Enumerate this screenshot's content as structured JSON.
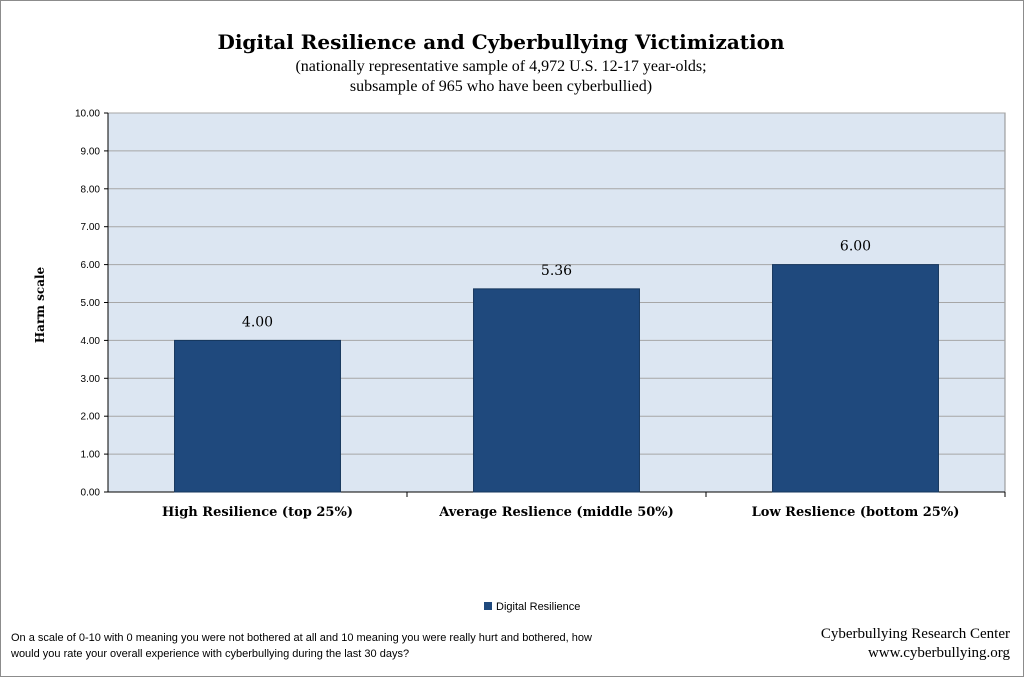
{
  "chart_data": {
    "type": "bar",
    "title": "Digital Resilience and Cyberbullying Victimization",
    "subtitle_lines": [
      "(nationally representative sample of 4,972 U.S. 12-17 year-olds;",
      "subsample of 965 who have been cyberbullied)"
    ],
    "ylabel": "Harm scale",
    "xlabel": "",
    "ylim": [
      0,
      10
    ],
    "yticks": [
      "0.00",
      "1.00",
      "2.00",
      "3.00",
      "4.00",
      "5.00",
      "6.00",
      "7.00",
      "8.00",
      "9.00",
      "10.00"
    ],
    "categories": [
      "High Resilience (top 25%)",
      "Average Reslience (middle 50%)",
      "Low Reslience (bottom 25%)"
    ],
    "series": [
      {
        "name": "Digital Resilience",
        "values": [
          4.0,
          5.36,
          6.0
        ],
        "labels": [
          "4.00",
          "5.36",
          "6.00"
        ]
      }
    ],
    "grid": true,
    "legend": "bottom",
    "colors": {
      "bar": "#1f497d",
      "plot_bg": "#dce6f2",
      "gridline": "#a6a6a6"
    }
  },
  "footnote_lines": [
    "On a scale of 0-10 with 0 meaning you were not bothered at all and 10 meaning you were really hurt and bothered, how",
    "would you rate your overall experience with cyberbullying during the last 30 days?"
  ],
  "source": {
    "line1": "Cyberbullying Research Center",
    "line2": "www.cyberbullying.org"
  }
}
